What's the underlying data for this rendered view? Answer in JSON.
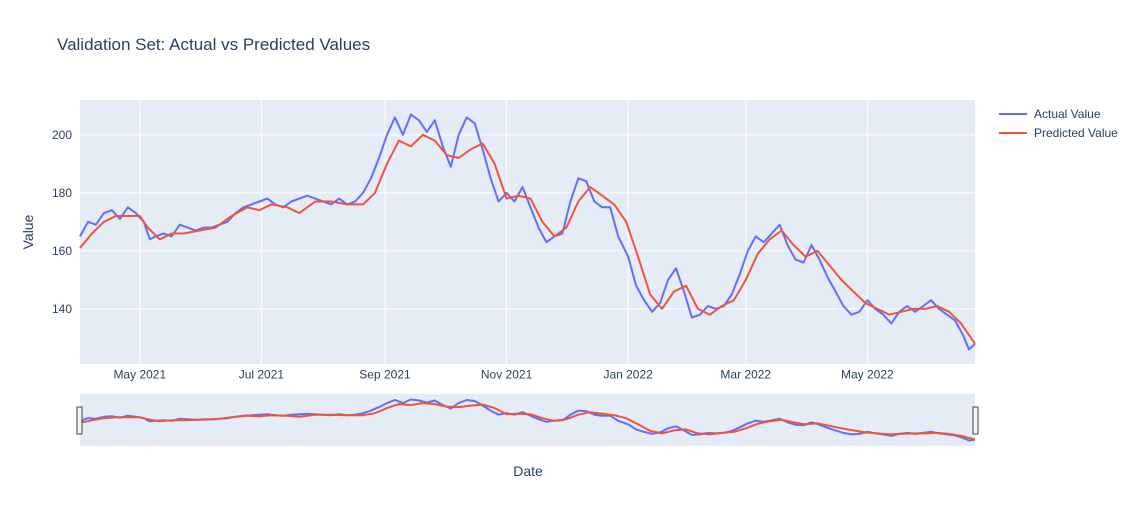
{
  "chart_data": {
    "type": "line",
    "title": "Validation Set: Actual vs Predicted Values",
    "xlabel": "Date",
    "ylabel": "Value",
    "ylim": [
      121,
      212
    ],
    "xlim": [
      "2021-04-01",
      "2022-06-24"
    ],
    "grid": true,
    "legend_position": "top-right",
    "has_range_slider": true,
    "x_ticks": [
      {
        "date": "2021-05-01",
        "label": "May 2021"
      },
      {
        "date": "2021-07-01",
        "label": "Jul 2021"
      },
      {
        "date": "2021-09-01",
        "label": "Sep 2021"
      },
      {
        "date": "2021-11-01",
        "label": "Nov 2021"
      },
      {
        "date": "2022-01-01",
        "label": "Jan 2022"
      },
      {
        "date": "2022-03-01",
        "label": "Mar 2022"
      },
      {
        "date": "2022-05-01",
        "label": "May 2022"
      }
    ],
    "y_ticks": [
      140,
      160,
      180,
      200
    ],
    "series": [
      {
        "name": "Actual Value",
        "color": "#636efa",
        "points": [
          [
            "2021-04-01",
            165
          ],
          [
            "2021-04-05",
            170
          ],
          [
            "2021-04-09",
            169
          ],
          [
            "2021-04-13",
            173
          ],
          [
            "2021-04-17",
            174
          ],
          [
            "2021-04-21",
            171
          ],
          [
            "2021-04-25",
            175
          ],
          [
            "2021-04-29",
            173
          ],
          [
            "2021-05-03",
            170
          ],
          [
            "2021-05-06",
            164
          ],
          [
            "2021-05-09",
            165
          ],
          [
            "2021-05-13",
            166
          ],
          [
            "2021-05-17",
            165
          ],
          [
            "2021-05-21",
            169
          ],
          [
            "2021-05-25",
            168
          ],
          [
            "2021-05-29",
            167
          ],
          [
            "2021-06-02",
            168
          ],
          [
            "2021-06-06",
            168
          ],
          [
            "2021-06-10",
            169
          ],
          [
            "2021-06-14",
            170
          ],
          [
            "2021-06-18",
            173
          ],
          [
            "2021-06-22",
            175
          ],
          [
            "2021-06-26",
            176
          ],
          [
            "2021-06-30",
            177
          ],
          [
            "2021-07-04",
            178
          ],
          [
            "2021-07-08",
            176
          ],
          [
            "2021-07-12",
            175
          ],
          [
            "2021-07-16",
            177
          ],
          [
            "2021-07-20",
            178
          ],
          [
            "2021-07-24",
            179
          ],
          [
            "2021-07-28",
            178
          ],
          [
            "2021-08-01",
            177
          ],
          [
            "2021-08-05",
            176
          ],
          [
            "2021-08-09",
            178
          ],
          [
            "2021-08-13",
            176
          ],
          [
            "2021-08-17",
            177
          ],
          [
            "2021-08-21",
            180
          ],
          [
            "2021-08-25",
            185
          ],
          [
            "2021-08-29",
            192
          ],
          [
            "2021-09-02",
            200
          ],
          [
            "2021-09-06",
            206
          ],
          [
            "2021-09-10",
            200
          ],
          [
            "2021-09-14",
            207
          ],
          [
            "2021-09-18",
            205
          ],
          [
            "2021-09-22",
            201
          ],
          [
            "2021-09-26",
            205
          ],
          [
            "2021-09-30",
            196
          ],
          [
            "2021-10-04",
            189
          ],
          [
            "2021-10-08",
            200
          ],
          [
            "2021-10-12",
            206
          ],
          [
            "2021-10-16",
            204
          ],
          [
            "2021-10-20",
            195
          ],
          [
            "2021-10-24",
            185
          ],
          [
            "2021-10-28",
            177
          ],
          [
            "2021-11-01",
            180
          ],
          [
            "2021-11-05",
            177
          ],
          [
            "2021-11-09",
            182
          ],
          [
            "2021-11-13",
            175
          ],
          [
            "2021-11-17",
            168
          ],
          [
            "2021-11-21",
            163
          ],
          [
            "2021-11-25",
            165
          ],
          [
            "2021-11-29",
            166
          ],
          [
            "2021-12-03",
            177
          ],
          [
            "2021-12-07",
            185
          ],
          [
            "2021-12-11",
            184
          ],
          [
            "2021-12-15",
            177
          ],
          [
            "2021-12-19",
            175
          ],
          [
            "2021-12-23",
            175
          ],
          [
            "2021-12-27",
            165
          ],
          [
            "2022-01-01",
            158
          ],
          [
            "2022-01-05",
            148
          ],
          [
            "2022-01-09",
            143
          ],
          [
            "2022-01-13",
            139
          ],
          [
            "2022-01-17",
            142
          ],
          [
            "2022-01-21",
            150
          ],
          [
            "2022-01-25",
            154
          ],
          [
            "2022-01-29",
            146
          ],
          [
            "2022-02-02",
            137
          ],
          [
            "2022-02-06",
            138
          ],
          [
            "2022-02-10",
            141
          ],
          [
            "2022-02-14",
            140
          ],
          [
            "2022-02-18",
            141
          ],
          [
            "2022-02-22",
            145
          ],
          [
            "2022-02-26",
            152
          ],
          [
            "2022-03-02",
            160
          ],
          [
            "2022-03-06",
            165
          ],
          [
            "2022-03-10",
            163
          ],
          [
            "2022-03-14",
            166
          ],
          [
            "2022-03-18",
            169
          ],
          [
            "2022-03-22",
            162
          ],
          [
            "2022-03-26",
            157
          ],
          [
            "2022-03-30",
            156
          ],
          [
            "2022-04-03",
            162
          ],
          [
            "2022-04-07",
            157
          ],
          [
            "2022-04-11",
            151
          ],
          [
            "2022-04-15",
            146
          ],
          [
            "2022-04-19",
            141
          ],
          [
            "2022-04-23",
            138
          ],
          [
            "2022-04-27",
            139
          ],
          [
            "2022-05-01",
            143
          ],
          [
            "2022-05-05",
            140
          ],
          [
            "2022-05-09",
            138
          ],
          [
            "2022-05-13",
            135
          ],
          [
            "2022-05-17",
            139
          ],
          [
            "2022-05-21",
            141
          ],
          [
            "2022-05-25",
            139
          ],
          [
            "2022-05-29",
            141
          ],
          [
            "2022-06-02",
            143
          ],
          [
            "2022-06-06",
            140
          ],
          [
            "2022-06-10",
            138
          ],
          [
            "2022-06-14",
            136
          ],
          [
            "2022-06-18",
            131
          ],
          [
            "2022-06-21",
            126
          ],
          [
            "2022-06-24",
            128
          ]
        ]
      },
      {
        "name": "Predicted Value",
        "color": "#ef553b",
        "points": [
          [
            "2021-04-01",
            161
          ],
          [
            "2021-04-07",
            166
          ],
          [
            "2021-04-13",
            170
          ],
          [
            "2021-04-19",
            172
          ],
          [
            "2021-04-25",
            172
          ],
          [
            "2021-05-01",
            172
          ],
          [
            "2021-05-05",
            168
          ],
          [
            "2021-05-11",
            164
          ],
          [
            "2021-05-17",
            166
          ],
          [
            "2021-05-23",
            166
          ],
          [
            "2021-05-31",
            167
          ],
          [
            "2021-06-08",
            168
          ],
          [
            "2021-06-16",
            172
          ],
          [
            "2021-06-24",
            175
          ],
          [
            "2021-06-30",
            174
          ],
          [
            "2021-07-06",
            176
          ],
          [
            "2021-07-14",
            175
          ],
          [
            "2021-07-20",
            173
          ],
          [
            "2021-07-28",
            177
          ],
          [
            "2021-08-05",
            177
          ],
          [
            "2021-08-13",
            176
          ],
          [
            "2021-08-21",
            176
          ],
          [
            "2021-08-27",
            180
          ],
          [
            "2021-09-02",
            190
          ],
          [
            "2021-09-08",
            198
          ],
          [
            "2021-09-14",
            196
          ],
          [
            "2021-09-20",
            200
          ],
          [
            "2021-09-26",
            198
          ],
          [
            "2021-10-02",
            193
          ],
          [
            "2021-10-08",
            192
          ],
          [
            "2021-10-14",
            195
          ],
          [
            "2021-10-20",
            197
          ],
          [
            "2021-10-26",
            190
          ],
          [
            "2021-11-01",
            178
          ],
          [
            "2021-11-07",
            179
          ],
          [
            "2021-11-13",
            178
          ],
          [
            "2021-11-19",
            170
          ],
          [
            "2021-11-25",
            165
          ],
          [
            "2021-12-01",
            168
          ],
          [
            "2021-12-07",
            177
          ],
          [
            "2021-12-13",
            182
          ],
          [
            "2021-12-19",
            179
          ],
          [
            "2021-12-25",
            176
          ],
          [
            "2021-12-31",
            170
          ],
          [
            "2022-01-06",
            158
          ],
          [
            "2022-01-12",
            145
          ],
          [
            "2022-01-18",
            140
          ],
          [
            "2022-01-24",
            146
          ],
          [
            "2022-01-30",
            148
          ],
          [
            "2022-02-05",
            140
          ],
          [
            "2022-02-11",
            138
          ],
          [
            "2022-02-17",
            141
          ],
          [
            "2022-02-23",
            143
          ],
          [
            "2022-03-01",
            150
          ],
          [
            "2022-03-07",
            159
          ],
          [
            "2022-03-13",
            164
          ],
          [
            "2022-03-19",
            167
          ],
          [
            "2022-03-25",
            162
          ],
          [
            "2022-03-31",
            158
          ],
          [
            "2022-04-06",
            160
          ],
          [
            "2022-04-12",
            155
          ],
          [
            "2022-04-18",
            150
          ],
          [
            "2022-04-24",
            146
          ],
          [
            "2022-04-30",
            142
          ],
          [
            "2022-05-06",
            140
          ],
          [
            "2022-05-12",
            138
          ],
          [
            "2022-05-18",
            139
          ],
          [
            "2022-05-24",
            140
          ],
          [
            "2022-05-30",
            140
          ],
          [
            "2022-06-05",
            141
          ],
          [
            "2022-06-11",
            139
          ],
          [
            "2022-06-17",
            135
          ],
          [
            "2022-06-24",
            128
          ]
        ]
      }
    ]
  }
}
